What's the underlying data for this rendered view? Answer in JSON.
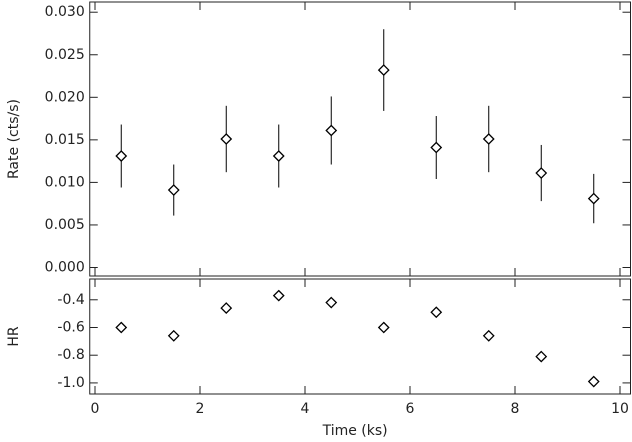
{
  "chart_data": [
    {
      "type": "scatter",
      "ylabel": "Rate (cts/s)",
      "x": [
        0.5,
        1.5,
        2.5,
        3.5,
        4.5,
        5.5,
        6.5,
        7.5,
        8.5,
        9.5
      ],
      "series": [
        {
          "color": "#000000",
          "values": [
            0.0131,
            0.0091,
            0.0151,
            0.0131,
            0.0161,
            0.0232,
            0.0141,
            0.0151,
            0.0111,
            0.0081
          ],
          "errors": [
            0.0037,
            0.003,
            0.0039,
            0.0037,
            0.004,
            0.0048,
            0.0037,
            0.0039,
            0.0033,
            0.0029
          ]
        }
      ],
      "xlim": [
        -0.1,
        10.2
      ],
      "xticks": [
        0,
        2,
        4,
        6,
        8,
        10
      ],
      "ylim": [
        -0.001,
        0.0312
      ],
      "yticks": [
        {
          "value": 0,
          "label": "0.000"
        },
        {
          "value": 0.005,
          "label": "0.005"
        },
        {
          "value": 0.01,
          "label": "0.010"
        },
        {
          "value": 0.015,
          "label": "0.015"
        },
        {
          "value": 0.02,
          "label": "0.020"
        },
        {
          "value": 0.025,
          "label": "0.025"
        },
        {
          "value": 0.03,
          "label": "0.030"
        }
      ]
    },
    {
      "type": "scatter",
      "ylabel": "HR",
      "xlabel": "Time (ks)",
      "x": [
        0.5,
        1.5,
        2.5,
        3.5,
        4.5,
        5.5,
        6.5,
        7.5,
        8.5,
        9.5
      ],
      "series": [
        {
          "color": "#000000",
          "values": [
            -0.6,
            -0.66,
            -0.46,
            -0.37,
            -0.42,
            -0.6,
            -0.49,
            -0.66,
            -0.81,
            -0.99
          ]
        }
      ],
      "xlim": [
        -0.1,
        10.2
      ],
      "xticks": [
        0,
        2,
        4,
        6,
        8,
        10
      ],
      "ylim": [
        -1.08,
        -0.25
      ],
      "yticks": [
        -0.4,
        -0.6,
        -0.8,
        {
          "value": -1,
          "label": "-1.0"
        }
      ]
    }
  ]
}
